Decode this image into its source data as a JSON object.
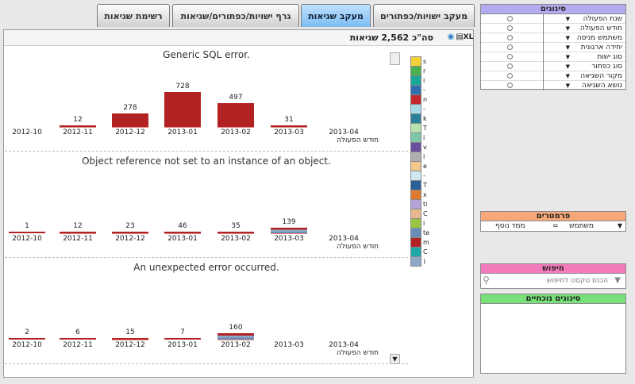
{
  "tabs": [
    {
      "label": "מעקב ישויות/כפתורים",
      "active": false
    },
    {
      "label": "מעקב שגיאות",
      "active": true
    },
    {
      "label": "גרף ישויות/כפתורים/שגיאות",
      "active": false
    },
    {
      "label": "רשימת שגיאות",
      "active": false
    }
  ],
  "header": {
    "total": "סה\"כ 2,562 שגיאות",
    "export_label": "XL"
  },
  "months": [
    "2012-10",
    "2012-11",
    "2012-12",
    "2013-01",
    "2013-02",
    "2013-03",
    "2013-04"
  ],
  "axis_label": "חודש הפעולה",
  "chart_data": [
    {
      "type": "bar",
      "title": "Generic SQL error.",
      "categories": [
        "2012-10",
        "2012-11",
        "2012-12",
        "2013-01",
        "2013-02",
        "2013-03",
        "2013-04"
      ],
      "values": [
        null,
        12,
        278,
        728,
        497,
        31,
        null
      ],
      "xlabel": "חודש הפעולה"
    },
    {
      "type": "bar",
      "title": "Object reference not set to an instance of an object.",
      "categories": [
        "2012-10",
        "2012-11",
        "2012-12",
        "2013-01",
        "2013-02",
        "2013-03",
        "2013-04"
      ],
      "values": [
        1,
        12,
        23,
        46,
        35,
        139,
        null
      ],
      "xlabel": "חודש הפעולה"
    },
    {
      "type": "bar",
      "title": "An unexpected error occurred.",
      "categories": [
        "2012-10",
        "2012-11",
        "2012-12",
        "2013-01",
        "2013-02",
        "2013-03",
        "2013-04"
      ],
      "values": [
        2,
        6,
        15,
        7,
        160,
        null,
        null
      ],
      "xlabel": "חודש הפעולה"
    }
  ],
  "legend": [
    {
      "color": "#f2d13a",
      "text": "s"
    },
    {
      "color": "#4caf50",
      "text": "r"
    },
    {
      "color": "#1aa89a",
      "text": "i"
    },
    {
      "color": "#2f6fb0",
      "text": "-"
    },
    {
      "color": "#c2282c",
      "text": "n"
    },
    {
      "color": "#a8dbe8",
      "text": "-"
    },
    {
      "color": "#2a7f9a",
      "text": "k"
    },
    {
      "color": "#b8e3b0",
      "text": "T"
    },
    {
      "color": "#7ec8a8",
      "text": "i"
    },
    {
      "color": "#6a4ea0",
      "text": "v"
    },
    {
      "color": "#b0b0b0",
      "text": "i"
    },
    {
      "color": "#f3c68c",
      "text": "e"
    },
    {
      "color": "#cfe8f0",
      "text": "-"
    },
    {
      "color": "#2b5f95",
      "text": "T"
    },
    {
      "color": "#e07a30",
      "text": "x"
    },
    {
      "color": "#b2a3d8",
      "text": "ti"
    },
    {
      "color": "#e8b890",
      "text": "C"
    },
    {
      "color": "#9ac443",
      "text": "i"
    },
    {
      "color": "#6a8db8",
      "text": "te"
    },
    {
      "color": "#b32222",
      "text": "m"
    },
    {
      "color": "#1fa8a8",
      "text": "C"
    },
    {
      "color": "#8fa8c8",
      "text": ")"
    }
  ],
  "filters_panel": {
    "title": "סינונים",
    "rows": [
      "שנת הפעולה",
      "חודש הפעולה",
      "משתמש מניסה",
      "יחידה ארגונית",
      "סוג ישות",
      "סוג כפתור",
      "מקור השגיאה",
      "נושא השגיאה"
    ]
  },
  "params_panel": {
    "title": "פרמטרים",
    "field": "משתמש",
    "operator": "=",
    "value": "ממד נוסף"
  },
  "search_panel": {
    "title": "חיפוש",
    "placeholder": "הכנס טקסט לחיפוש"
  },
  "current_filters": {
    "title": "סינונים נוכחיים"
  },
  "colors": {
    "filters": "#a8a0e8",
    "params": "#f0a070",
    "search": "#f070b0",
    "current": "#70e070",
    "bar": "#b32222"
  }
}
